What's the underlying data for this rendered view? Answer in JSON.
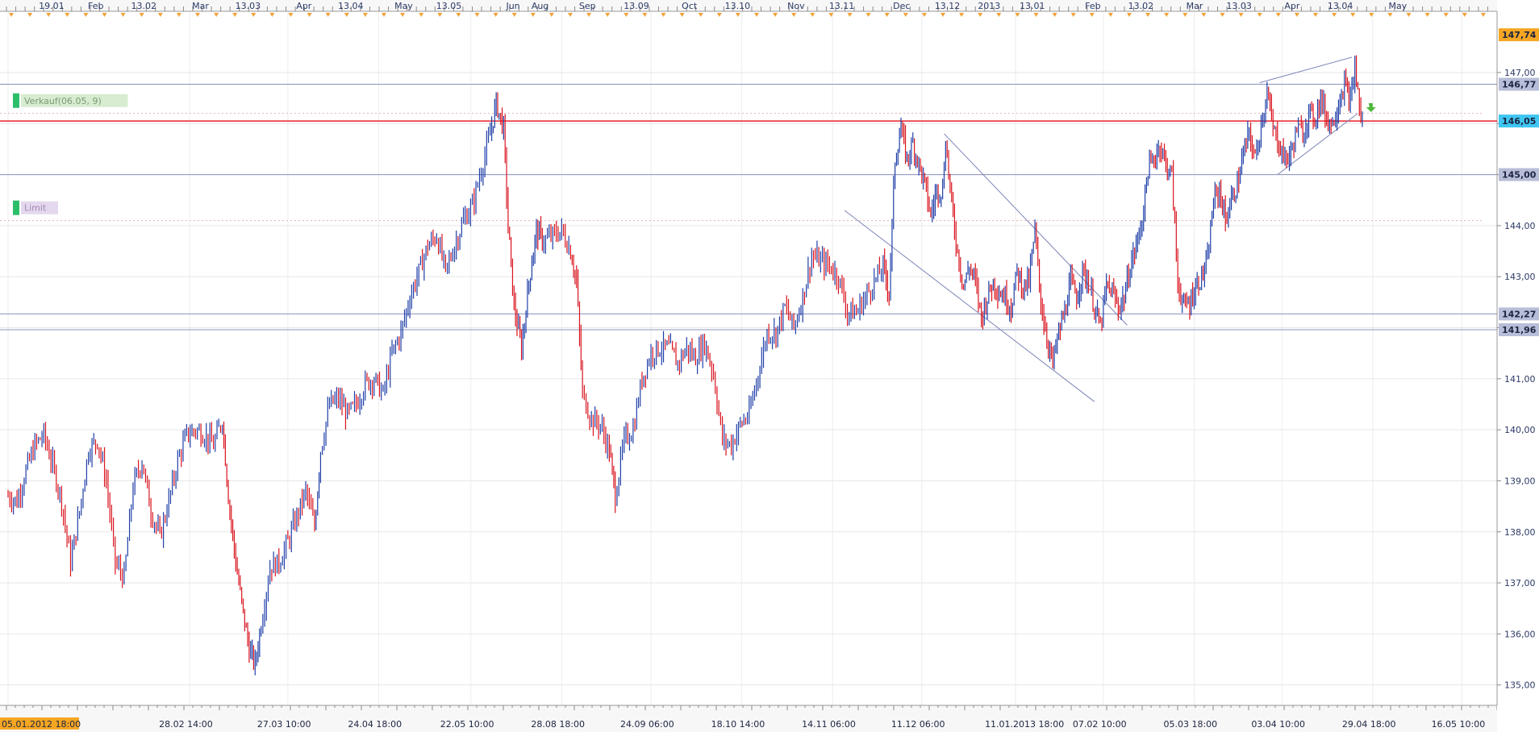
{
  "chart_data": {
    "type": "candlestick",
    "y_range": [
      134.6,
      148.2
    ],
    "y_ticks": [
      "147,00",
      "146,00",
      "145,00",
      "144,00",
      "143,00",
      "142,00",
      "141,00",
      "140,00",
      "139,00",
      "138,00",
      "137,00",
      "136,00",
      "135,00"
    ],
    "y_tick_values": [
      147,
      146,
      145,
      144,
      143,
      142,
      141,
      140,
      139,
      138,
      137,
      136,
      135
    ],
    "top_labels": [
      {
        "text": "19.01",
        "pos": 0.025
      },
      {
        "text": "Feb",
        "pos": 0.058
      },
      {
        "text": "13.02",
        "pos": 0.087
      },
      {
        "text": "Mar",
        "pos": 0.128
      },
      {
        "text": "13.03",
        "pos": 0.157
      },
      {
        "text": "Apr",
        "pos": 0.198
      },
      {
        "text": "13.04",
        "pos": 0.226
      },
      {
        "text": "May",
        "pos": 0.264
      },
      {
        "text": "13.05",
        "pos": 0.292
      },
      {
        "text": "Jun",
        "pos": 0.339
      },
      {
        "text": "Aug",
        "pos": 0.356
      },
      {
        "text": "Sep",
        "pos": 0.388
      },
      {
        "text": "13.09",
        "pos": 0.418
      },
      {
        "text": "Oct",
        "pos": 0.457
      },
      {
        "text": "13.10",
        "pos": 0.486
      },
      {
        "text": "Nov",
        "pos": 0.528
      },
      {
        "text": "13.11",
        "pos": 0.556
      },
      {
        "text": "Dec",
        "pos": 0.599
      },
      {
        "text": "13.12",
        "pos": 0.627
      },
      {
        "text": "2013",
        "pos": 0.656
      },
      {
        "text": "13.01",
        "pos": 0.684
      },
      {
        "text": "Feb",
        "pos": 0.728
      },
      {
        "text": "13.02",
        "pos": 0.757
      },
      {
        "text": "Mar",
        "pos": 0.796
      },
      {
        "text": "13.03",
        "pos": 0.823
      },
      {
        "text": "Apr",
        "pos": 0.862
      },
      {
        "text": "13.04",
        "pos": 0.891
      },
      {
        "text": "May",
        "pos": 0.932
      }
    ],
    "bottom_labels": [
      {
        "text": "05.01.2012 18:00",
        "pos": 0.0,
        "highlight": true
      },
      {
        "text": "28.02 14:00",
        "pos": 0.122
      },
      {
        "text": "27.03 10:00",
        "pos": 0.188
      },
      {
        "text": "24.04 18:00",
        "pos": 0.249
      },
      {
        "text": "22.05 10:00",
        "pos": 0.311
      },
      {
        "text": "28.08 18:00",
        "pos": 0.372
      },
      {
        "text": "24.09 06:00",
        "pos": 0.432
      },
      {
        "text": "18.10 14:00",
        "pos": 0.493
      },
      {
        "text": "14.11 06:00",
        "pos": 0.554
      },
      {
        "text": "11.12 06:00",
        "pos": 0.614
      },
      {
        "text": "11.01.2013 18:00",
        "pos": 0.677
      },
      {
        "text": "07.02 10:00",
        "pos": 0.736
      },
      {
        "text": "05.03 18:00",
        "pos": 0.797
      },
      {
        "text": "03.04 10:00",
        "pos": 0.856
      },
      {
        "text": "29.04 18:00",
        "pos": 0.917
      },
      {
        "text": "16.05 10:00",
        "pos": 0.977
      }
    ],
    "horizontal_levels": [
      {
        "value": 147.74,
        "label": "147,74",
        "color": "#f5a623",
        "line": "none"
      },
      {
        "value": 146.77,
        "label": "146,77",
        "color": "#b8bdd8",
        "line": "#8a90c0"
      },
      {
        "value": 146.05,
        "label": "146,05",
        "color": "#3fc6f2",
        "line": "#e8202a"
      },
      {
        "value": 145.0,
        "label": "145,00",
        "color": "#b8bdd8",
        "line": "#8a90c0"
      },
      {
        "value": 142.27,
        "label": "142,27",
        "color": "#b8bdd8",
        "line": "#8a90c0"
      },
      {
        "value": 141.96,
        "label": "141,96",
        "color": "#b8bdd8",
        "line": "#8a90c0"
      }
    ],
    "dotted_levels": [
      146.2,
      144.1
    ],
    "order_labels": [
      {
        "text": "Verkauf(06.05, 9)",
        "value": 146.45,
        "bg": "#d7ecd0",
        "fg": "#7a9a72",
        "marker": "#2cbf6a"
      },
      {
        "text": "Limit",
        "value": 144.35,
        "bg": "#e4d8ee",
        "fg": "#a38ab8",
        "marker": "#2cbf6a"
      }
    ],
    "trend_lines": [
      {
        "from": [
          0.562,
          144.3
        ],
        "to": [
          0.73,
          140.55
        ]
      },
      {
        "from": [
          0.629,
          145.8
        ],
        "to": [
          0.752,
          142.05
        ]
      },
      {
        "from": [
          0.841,
          146.8
        ],
        "to": [
          0.903,
          147.3
        ]
      },
      {
        "from": [
          0.853,
          145.0
        ],
        "to": [
          0.907,
          146.2
        ]
      }
    ],
    "price_path": [
      [
        0.0,
        138.7
      ],
      [
        0.006,
        138.6
      ],
      [
        0.012,
        139.2
      ],
      [
        0.018,
        139.7
      ],
      [
        0.024,
        139.9
      ],
      [
        0.03,
        139.3
      ],
      [
        0.036,
        138.6
      ],
      [
        0.042,
        137.4
      ],
      [
        0.048,
        138.4
      ],
      [
        0.054,
        139.6
      ],
      [
        0.06,
        139.8
      ],
      [
        0.066,
        139.0
      ],
      [
        0.072,
        137.4
      ],
      [
        0.078,
        137.1
      ],
      [
        0.084,
        138.9
      ],
      [
        0.09,
        139.4
      ],
      [
        0.096,
        138.4
      ],
      [
        0.102,
        137.9
      ],
      [
        0.108,
        138.6
      ],
      [
        0.114,
        139.4
      ],
      [
        0.12,
        139.9
      ],
      [
        0.126,
        140.0
      ],
      [
        0.132,
        139.9
      ],
      [
        0.138,
        139.7
      ],
      [
        0.144,
        140.2
      ],
      [
        0.148,
        138.7
      ],
      [
        0.153,
        137.4
      ],
      [
        0.158,
        136.4
      ],
      [
        0.162,
        135.7
      ],
      [
        0.166,
        135.4
      ],
      [
        0.17,
        136.2
      ],
      [
        0.176,
        137.3
      ],
      [
        0.182,
        137.4
      ],
      [
        0.188,
        137.8
      ],
      [
        0.194,
        138.3
      ],
      [
        0.2,
        138.8
      ],
      [
        0.206,
        138.1
      ],
      [
        0.21,
        139.6
      ],
      [
        0.216,
        140.5
      ],
      [
        0.222,
        140.6
      ],
      [
        0.228,
        140.3
      ],
      [
        0.234,
        140.5
      ],
      [
        0.24,
        140.9
      ],
      [
        0.246,
        141.0
      ],
      [
        0.252,
        140.7
      ],
      [
        0.258,
        141.5
      ],
      [
        0.264,
        141.9
      ],
      [
        0.27,
        142.6
      ],
      [
        0.276,
        143.1
      ],
      [
        0.282,
        143.6
      ],
      [
        0.288,
        143.8
      ],
      [
        0.294,
        143.1
      ],
      [
        0.3,
        143.6
      ],
      [
        0.306,
        144.1
      ],
      [
        0.312,
        144.4
      ],
      [
        0.318,
        145.1
      ],
      [
        0.324,
        145.8
      ],
      [
        0.328,
        146.4
      ],
      [
        0.33,
        146.2
      ],
      [
        0.333,
        145.9
      ],
      [
        0.336,
        144.0
      ],
      [
        0.34,
        142.4
      ],
      [
        0.345,
        141.6
      ],
      [
        0.35,
        142.9
      ],
      [
        0.355,
        143.9
      ],
      [
        0.36,
        143.7
      ],
      [
        0.366,
        143.8
      ],
      [
        0.372,
        143.9
      ],
      [
        0.378,
        143.5
      ],
      [
        0.382,
        142.9
      ],
      [
        0.386,
        140.7
      ],
      [
        0.392,
        140.2
      ],
      [
        0.398,
        140.1
      ],
      [
        0.404,
        139.6
      ],
      [
        0.408,
        138.7
      ],
      [
        0.414,
        139.8
      ],
      [
        0.42,
        140.0
      ],
      [
        0.426,
        141.0
      ],
      [
        0.432,
        141.5
      ],
      [
        0.438,
        141.6
      ],
      [
        0.444,
        141.6
      ],
      [
        0.45,
        141.3
      ],
      [
        0.456,
        141.6
      ],
      [
        0.462,
        141.4
      ],
      [
        0.468,
        141.7
      ],
      [
        0.474,
        141.1
      ],
      [
        0.48,
        139.8
      ],
      [
        0.486,
        139.7
      ],
      [
        0.492,
        140.1
      ],
      [
        0.498,
        140.3
      ],
      [
        0.504,
        141.1
      ],
      [
        0.51,
        141.9
      ],
      [
        0.516,
        141.9
      ],
      [
        0.522,
        142.4
      ],
      [
        0.528,
        142.0
      ],
      [
        0.534,
        142.6
      ],
      [
        0.54,
        143.4
      ],
      [
        0.546,
        143.3
      ],
      [
        0.552,
        143.2
      ],
      [
        0.558,
        143.0
      ],
      [
        0.564,
        142.3
      ],
      [
        0.57,
        142.3
      ],
      [
        0.576,
        142.6
      ],
      [
        0.582,
        142.9
      ],
      [
        0.588,
        143.2
      ],
      [
        0.592,
        142.7
      ],
      [
        0.596,
        145.3
      ],
      [
        0.6,
        145.9
      ],
      [
        0.604,
        145.3
      ],
      [
        0.608,
        145.6
      ],
      [
        0.612,
        145.2
      ],
      [
        0.616,
        144.8
      ],
      [
        0.62,
        144.2
      ],
      [
        0.624,
        144.7
      ],
      [
        0.628,
        144.7
      ],
      [
        0.63,
        145.7
      ],
      [
        0.634,
        144.4
      ],
      [
        0.638,
        143.5
      ],
      [
        0.642,
        142.8
      ],
      [
        0.646,
        143.2
      ],
      [
        0.65,
        142.9
      ],
      [
        0.654,
        142.2
      ],
      [
        0.658,
        142.6
      ],
      [
        0.662,
        142.9
      ],
      [
        0.666,
        142.7
      ],
      [
        0.67,
        142.6
      ],
      [
        0.674,
        142.4
      ],
      [
        0.678,
        143.1
      ],
      [
        0.682,
        142.8
      ],
      [
        0.686,
        142.9
      ],
      [
        0.69,
        143.9
      ],
      [
        0.694,
        142.5
      ],
      [
        0.698,
        141.8
      ],
      [
        0.702,
        141.3
      ],
      [
        0.706,
        141.9
      ],
      [
        0.71,
        142.3
      ],
      [
        0.714,
        142.9
      ],
      [
        0.718,
        142.6
      ],
      [
        0.722,
        143.1
      ],
      [
        0.726,
        142.9
      ],
      [
        0.73,
        142.4
      ],
      [
        0.734,
        142.0
      ],
      [
        0.738,
        142.8
      ],
      [
        0.742,
        142.7
      ],
      [
        0.746,
        142.4
      ],
      [
        0.75,
        142.6
      ],
      [
        0.754,
        143.2
      ],
      [
        0.758,
        143.6
      ],
      [
        0.762,
        144.1
      ],
      [
        0.766,
        145.1
      ],
      [
        0.77,
        145.3
      ],
      [
        0.774,
        145.6
      ],
      [
        0.778,
        145.2
      ],
      [
        0.782,
        145.0
      ],
      [
        0.786,
        142.9
      ],
      [
        0.79,
        142.4
      ],
      [
        0.794,
        142.5
      ],
      [
        0.798,
        142.8
      ],
      [
        0.802,
        143.0
      ],
      [
        0.806,
        143.3
      ],
      [
        0.81,
        144.5
      ],
      [
        0.814,
        144.7
      ],
      [
        0.818,
        144.1
      ],
      [
        0.822,
        144.5
      ],
      [
        0.826,
        144.8
      ],
      [
        0.83,
        145.4
      ],
      [
        0.834,
        145.8
      ],
      [
        0.838,
        145.3
      ],
      [
        0.842,
        146.0
      ],
      [
        0.846,
        146.6
      ],
      [
        0.85,
        145.9
      ],
      [
        0.854,
        145.6
      ],
      [
        0.858,
        145.3
      ],
      [
        0.862,
        145.4
      ],
      [
        0.866,
        145.9
      ],
      [
        0.87,
        145.8
      ],
      [
        0.874,
        146.2
      ],
      [
        0.878,
        146.1
      ],
      [
        0.882,
        146.5
      ],
      [
        0.886,
        146.1
      ],
      [
        0.89,
        146.0
      ],
      [
        0.894,
        146.4
      ],
      [
        0.898,
        146.8
      ],
      [
        0.902,
        146.4
      ],
      [
        0.905,
        147.1
      ],
      [
        0.907,
        146.6
      ],
      [
        0.909,
        146.1
      ],
      [
        0.911,
        146.05
      ]
    ]
  }
}
